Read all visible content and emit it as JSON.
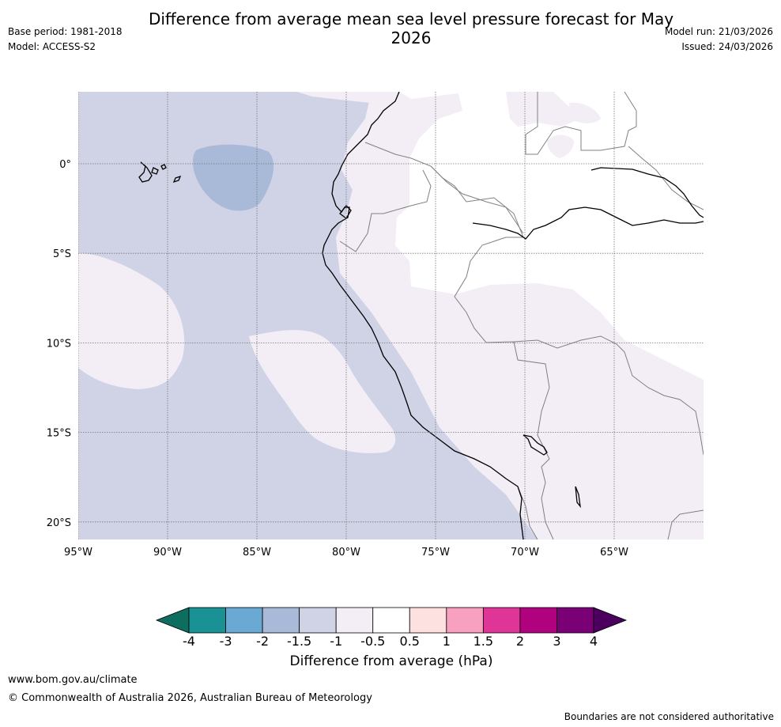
{
  "header": {
    "title": "Difference from average mean sea level pressure forecast for May 2026",
    "base_period": "Base period: 1981-2018",
    "model": "Model: ACCESS-S2",
    "model_run": "Model run: 21/03/2026",
    "issued": "Issued: 24/03/2026"
  },
  "map": {
    "lon_range": [
      -95,
      -60
    ],
    "lat_range": [
      -21,
      4
    ],
    "lon_ticks": [
      {
        "value": -95,
        "label": "95°W"
      },
      {
        "value": -90,
        "label": "90°W"
      },
      {
        "value": -85,
        "label": "85°W"
      },
      {
        "value": -80,
        "label": "80°W"
      },
      {
        "value": -75,
        "label": "75°W"
      },
      {
        "value": -70,
        "label": "70°W"
      },
      {
        "value": -65,
        "label": "65°W"
      }
    ],
    "lat_ticks": [
      {
        "value": 0,
        "label": "0°"
      },
      {
        "value": -5,
        "label": "5°S"
      },
      {
        "value": -10,
        "label": "10°S"
      },
      {
        "value": -15,
        "label": "15°S"
      },
      {
        "value": -20,
        "label": "20°S"
      }
    ]
  },
  "colorbar": {
    "bounds": [
      "-4",
      "-3",
      "-2",
      "-1.5",
      "-1",
      "-0.5",
      "0.5",
      "1",
      "1.5",
      "2",
      "3",
      "4"
    ],
    "colors": [
      "#1a9194",
      "#6aa9d3",
      "#a9bad8",
      "#d0d2e6",
      "#f3edf6",
      "#ffffff",
      "#fde0e0",
      "#f8a0bf",
      "#de3597",
      "#b0027f",
      "#7a0076"
    ],
    "under_color": "#0d6e60",
    "over_color": "#4b0060",
    "label": "Difference from average (hPa)"
  },
  "colors": {
    "band_neg_1_5": "#d0d2e6",
    "band_neg_2": "#a9bad8",
    "band_neg_1": "#f3edf6",
    "band_neutral": "#ffffff"
  },
  "footer": {
    "url": "www.bom.gov.au/climate",
    "copyright": "© Commonwealth of Australia 2026, Australian Bureau of Meteorology",
    "note": "Boundaries are not considered authoritative"
  }
}
